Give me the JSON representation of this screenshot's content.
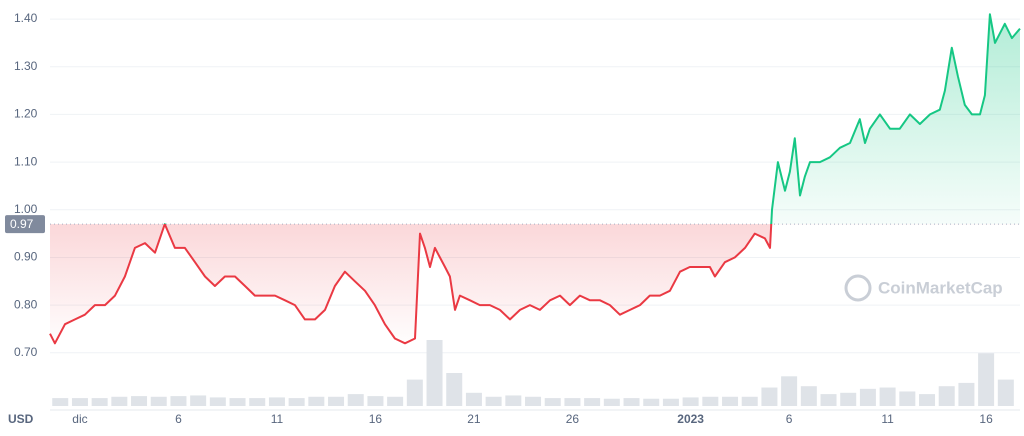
{
  "chart_data": {
    "type": "line",
    "currency": "USD",
    "watermark": "CoinMarketCap",
    "baseline": 0.97,
    "colors": {
      "up": "#16c784",
      "down": "#ea3943"
    },
    "xlim": [
      -1.52,
      47.72
    ],
    "ylim": [
      0.58,
      1.44
    ],
    "grid": true,
    "xticks": [
      {
        "value": 0,
        "label": "dic"
      },
      {
        "value": 5,
        "label": "6"
      },
      {
        "value": 10,
        "label": "11"
      },
      {
        "value": 15,
        "label": "16"
      },
      {
        "value": 20,
        "label": "21"
      },
      {
        "value": 25,
        "label": "26"
      },
      {
        "value": 31,
        "label": "2023"
      },
      {
        "value": 36,
        "label": "6"
      },
      {
        "value": 41,
        "label": "11"
      },
      {
        "value": 46,
        "label": "16"
      }
    ],
    "yticks": [
      {
        "value": 0.7,
        "label": "0.70"
      },
      {
        "value": 0.8,
        "label": "0.80"
      },
      {
        "value": 0.9,
        "label": "0.90"
      },
      {
        "value": 1.0,
        "label": "1.00"
      },
      {
        "value": 1.1,
        "label": "1.10"
      },
      {
        "value": 1.2,
        "label": "1.20"
      },
      {
        "value": 1.3,
        "label": "1.30"
      },
      {
        "value": 1.4,
        "label": "1.40"
      }
    ],
    "x": [
      -1.52,
      -1.27,
      -0.76,
      -0.25,
      0.25,
      0.76,
      1.27,
      1.78,
      2.28,
      2.79,
      3.3,
      3.81,
      4.31,
      4.82,
      5.33,
      5.84,
      6.35,
      6.85,
      7.36,
      7.87,
      8.38,
      8.88,
      9.39,
      9.9,
      10.41,
      10.91,
      11.42,
      11.93,
      12.44,
      12.94,
      13.45,
      13.96,
      14.47,
      14.97,
      15.48,
      15.99,
      16.5,
      17.01,
      17.26,
      17.51,
      17.77,
      18.02,
      18.27,
      18.53,
      18.78,
      19.04,
      19.29,
      19.8,
      20.3,
      20.81,
      21.32,
      21.83,
      22.34,
      22.84,
      23.35,
      23.86,
      24.37,
      24.87,
      25.38,
      25.89,
      26.4,
      26.9,
      27.41,
      27.92,
      28.43,
      28.93,
      29.44,
      29.95,
      30.46,
      30.96,
      31.47,
      31.98,
      32.23,
      32.74,
      33.25,
      33.76,
      34.26,
      34.77,
      35.03,
      35.13,
      35.43,
      35.79,
      36.04,
      36.29,
      36.55,
      36.8,
      37.06,
      37.56,
      38.07,
      38.58,
      39.09,
      39.59,
      39.85,
      40.1,
      40.61,
      41.12,
      41.62,
      42.13,
      42.64,
      43.15,
      43.65,
      43.91,
      44.26,
      44.57,
      44.92,
      45.28,
      45.69,
      45.94,
      46.19,
      46.45,
      46.95,
      47.31,
      47.72
    ],
    "values": [
      0.74,
      0.72,
      0.76,
      0.77,
      0.78,
      0.8,
      0.8,
      0.82,
      0.86,
      0.92,
      0.93,
      0.91,
      0.97,
      0.92,
      0.92,
      0.89,
      0.86,
      0.84,
      0.86,
      0.86,
      0.84,
      0.82,
      0.82,
      0.82,
      0.81,
      0.8,
      0.77,
      0.77,
      0.79,
      0.84,
      0.87,
      0.85,
      0.83,
      0.8,
      0.76,
      0.73,
      0.72,
      0.73,
      0.95,
      0.92,
      0.88,
      0.92,
      0.9,
      0.88,
      0.86,
      0.79,
      0.82,
      0.81,
      0.8,
      0.8,
      0.79,
      0.77,
      0.79,
      0.8,
      0.79,
      0.81,
      0.82,
      0.8,
      0.82,
      0.81,
      0.81,
      0.8,
      0.78,
      0.79,
      0.8,
      0.82,
      0.82,
      0.83,
      0.87,
      0.88,
      0.88,
      0.88,
      0.86,
      0.89,
      0.9,
      0.92,
      0.95,
      0.94,
      0.92,
      1.0,
      1.1,
      1.04,
      1.08,
      1.15,
      1.03,
      1.07,
      1.1,
      1.1,
      1.11,
      1.13,
      1.14,
      1.19,
      1.14,
      1.17,
      1.2,
      1.17,
      1.17,
      1.2,
      1.18,
      1.2,
      1.21,
      1.25,
      1.34,
      1.28,
      1.22,
      1.2,
      1.2,
      1.24,
      1.41,
      1.35,
      1.39,
      1.36,
      1.38
    ],
    "volume": {
      "color": "#dfe3e8",
      "x": [
        -1,
        0,
        1,
        2,
        3,
        4,
        5,
        6,
        7,
        8,
        9,
        10,
        11,
        12,
        13,
        14,
        15,
        16,
        17,
        18,
        19,
        20,
        21,
        22,
        23,
        24,
        25,
        26,
        27,
        28,
        29,
        30,
        31,
        32,
        33,
        34,
        35,
        36,
        37,
        38,
        39,
        40,
        41,
        42,
        43,
        44,
        45,
        46,
        47
      ],
      "values": [
        12,
        12,
        12,
        14,
        15,
        14,
        15,
        16,
        13,
        12,
        12,
        13,
        12,
        14,
        14,
        18,
        15,
        14,
        40,
        100,
        50,
        20,
        14,
        16,
        14,
        12,
        12,
        12,
        11,
        12,
        11,
        11,
        13,
        14,
        14,
        14,
        28,
        45,
        30,
        18,
        20,
        26,
        28,
        22,
        18,
        30,
        35,
        80,
        40
      ]
    }
  }
}
